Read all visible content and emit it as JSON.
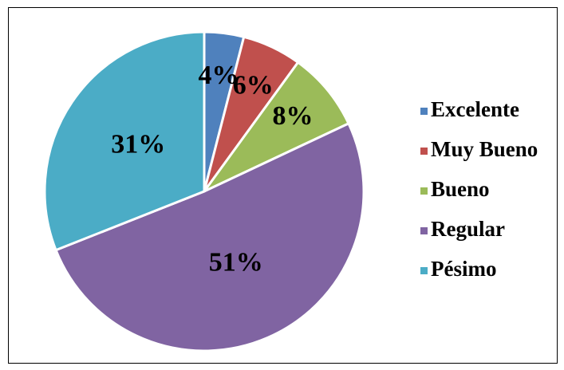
{
  "chart_data": {
    "type": "pie",
    "categories": [
      "Excelente",
      "Muy Bueno",
      "Bueno",
      "Regular",
      "Pésimo"
    ],
    "values": [
      4,
      6,
      8,
      51,
      31
    ],
    "value_labels": [
      "4%",
      "6%",
      "8%",
      "51%",
      "31%"
    ],
    "colors": [
      "#4f81bd",
      "#c0504d",
      "#9bbb59",
      "#8064a2",
      "#4bacc6"
    ],
    "legend": "right"
  }
}
